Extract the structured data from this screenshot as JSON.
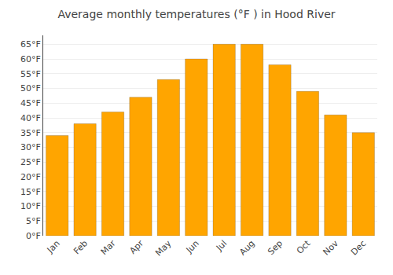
{
  "chart_data": {
    "type": "bar",
    "title": "Average monthly temperatures (°F ) in Hood River",
    "categories": [
      "Jan",
      "Feb",
      "Mar",
      "Apr",
      "May",
      "Jun",
      "Jul",
      "Aug",
      "Sep",
      "Oct",
      "Nov",
      "Dec"
    ],
    "values": [
      34,
      38,
      42,
      47,
      53,
      60,
      65,
      65,
      58,
      49,
      41,
      35
    ],
    "color": "#FFA500",
    "ylim": [
      0,
      68
    ],
    "yticks": [
      {
        "value": 0,
        "label": "0°F"
      },
      {
        "value": 5,
        "label": "5°F"
      },
      {
        "value": 10,
        "label": "10°F"
      },
      {
        "value": 15,
        "label": "15°F"
      },
      {
        "value": 20,
        "label": "20°F"
      },
      {
        "value": 25,
        "label": "25°F"
      },
      {
        "value": 30,
        "label": "30°F"
      },
      {
        "value": 35,
        "label": "35°F"
      },
      {
        "value": 40,
        "label": "40°F"
      },
      {
        "value": 45,
        "label": "45°F"
      },
      {
        "value": 50,
        "label": "50°F"
      },
      {
        "value": 55,
        "label": "55°F"
      },
      {
        "value": 60,
        "label": "60°F"
      },
      {
        "value": 65,
        "label": "65°F"
      }
    ],
    "grid": true
  }
}
